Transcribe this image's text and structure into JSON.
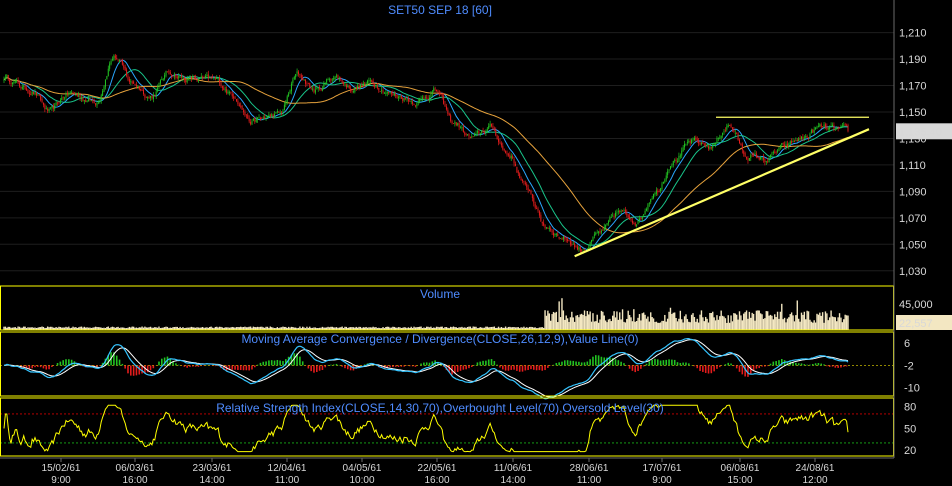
{
  "chart_data": {
    "type": "line",
    "title": "SET50 SEP 18   [60]",
    "colors": {
      "up": "#22c322",
      "down": "#e41c1c",
      "ma_fast": "#2aa7ff",
      "ma_mid": "#19c48a",
      "ma_slow": "#e6a23c",
      "trendline": "#ffff66",
      "macd": "#35c4ff",
      "signal": "#ffffff",
      "rsi": "#ffff00",
      "volume": "#f3e7c2",
      "panel_border": "#ffff00"
    },
    "x_labels": [
      {
        "date": "15/02/61",
        "time": "9:00"
      },
      {
        "date": "06/03/61",
        "time": "16:00"
      },
      {
        "date": "23/03/61",
        "time": "14:00"
      },
      {
        "date": "12/04/61",
        "time": "11:00"
      },
      {
        "date": "04/05/61",
        "time": "10:00"
      },
      {
        "date": "22/05/61",
        "time": "16:00"
      },
      {
        "date": "11/06/61",
        "time": "14:00"
      },
      {
        "date": "28/06/61",
        "time": "11:00"
      },
      {
        "date": "17/07/61",
        "time": "9:00"
      },
      {
        "date": "06/08/61",
        "time": "15:00"
      },
      {
        "date": "24/08/61",
        "time": "12:00"
      }
    ],
    "price": {
      "ylim": [
        1020,
        1218
      ],
      "ticks": [
        "1,210",
        "1,190",
        "1,170",
        "1,150",
        "1,130",
        "1,110",
        "1,090",
        "1,070",
        "1,050",
        "1,030"
      ],
      "tick_values": [
        1210,
        1190,
        1170,
        1150,
        1130,
        1110,
        1090,
        1070,
        1050,
        1030
      ],
      "last_value": "1,135.40",
      "anchors": [
        [
          0,
          1176
        ],
        [
          3,
          1166
        ],
        [
          5,
          1150
        ],
        [
          7,
          1164
        ],
        [
          10,
          1158
        ],
        [
          12,
          1192
        ],
        [
          14,
          1172
        ],
        [
          16,
          1162
        ],
        [
          18,
          1180
        ],
        [
          20,
          1175
        ],
        [
          23,
          1174
        ],
        [
          25,
          1163
        ],
        [
          27,
          1143
        ],
        [
          30,
          1148
        ],
        [
          32,
          1178
        ],
        [
          34,
          1166
        ],
        [
          36,
          1177
        ],
        [
          38,
          1168
        ],
        [
          40,
          1172
        ],
        [
          43,
          1162
        ],
        [
          45,
          1158
        ],
        [
          47,
          1166
        ],
        [
          49,
          1142
        ],
        [
          51,
          1130
        ],
        [
          53,
          1138
        ],
        [
          55,
          1118
        ],
        [
          57,
          1092
        ],
        [
          59,
          1064
        ],
        [
          61,
          1055
        ],
        [
          63,
          1046
        ],
        [
          65,
          1058
        ],
        [
          67,
          1074
        ],
        [
          69,
          1068
        ],
        [
          71,
          1090
        ],
        [
          73,
          1114
        ],
        [
          75,
          1127
        ],
        [
          77,
          1124
        ],
        [
          79,
          1140
        ],
        [
          81,
          1117
        ],
        [
          83,
          1114
        ],
        [
          85,
          1123
        ],
        [
          87,
          1130
        ],
        [
          89,
          1138
        ],
        [
          91,
          1136
        ],
        [
          92,
          1135.4
        ]
      ]
    },
    "volume": {
      "label": "Volume",
      "ticks": [
        "45,000",
        "22,557"
      ],
      "tick_values": [
        45000,
        22557
      ],
      "ylim": [
        0,
        55000
      ]
    },
    "macd": {
      "label": "Moving Average Convergence / Divergence(CLOSE,26,12,9),Value Line(0)",
      "ticks": [
        "6",
        "-2",
        "-10"
      ],
      "tick_values": [
        6,
        -2,
        -10
      ],
      "ylim": [
        -13,
        10
      ]
    },
    "rsi": {
      "label": "Relative Strength Index(CLOSE,14,30,70),Overbought Level(70),Oversold Level(30)",
      "ticks": [
        "80",
        "50",
        "20"
      ],
      "tick_values": [
        80,
        50,
        20
      ],
      "ylim": [
        12,
        92
      ],
      "overbought": 70,
      "oversold": 30
    }
  }
}
